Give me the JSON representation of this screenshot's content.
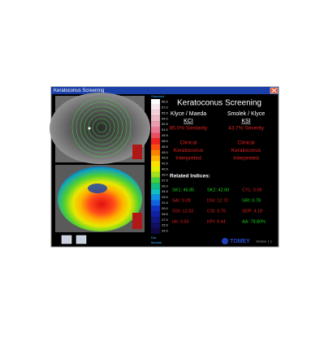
{
  "window": {
    "title": "Keratoconus Screening"
  },
  "scale": {
    "header": "Standard",
    "labels": [
      "58.5",
      "57.0",
      "55.5",
      "54.0",
      "52.5",
      "51.0",
      "49.5",
      "48.0",
      "46.5",
      "45.0",
      "43.5",
      "42.0",
      "40.5",
      "39.0",
      "37.5",
      "36.0",
      "34.5",
      "33.0",
      "31.5",
      "30.0",
      "28.5",
      "27.0",
      "25.5",
      "24.0"
    ],
    "footer": [
      "Dia",
      "Module"
    ]
  },
  "panel": {
    "heading": "Keratoconus Screening",
    "columns": [
      {
        "author": "Klyce / Maeda",
        "index": "KCI",
        "result": "85.0% Similarity",
        "interpretation": [
          "Clinical",
          "Keratoconus",
          "Interpreted"
        ]
      },
      {
        "author": "Smolek / Klyce",
        "index": "KSI",
        "result": "43.7% Severity",
        "interpretation": [
          "Clinical",
          "Keratoconus",
          "Interpreted"
        ]
      }
    ],
    "related_title": "Related Indices:",
    "indices": [
      [
        {
          "text": "SK1: 45.85",
          "color": "#19d219"
        },
        {
          "text": "SK2: 42.60",
          "color": "#19d219"
        },
        {
          "text": "CYL: 3.06",
          "color": "#e02020"
        }
      ],
      [
        {
          "text": "SAI: 0.28",
          "color": "#e02020"
        },
        {
          "text": "DSI: 12.72",
          "color": "#e02020"
        },
        {
          "text": "SRI: 0.78",
          "color": "#19d219"
        }
      ],
      [
        {
          "text": "OSI: 12.62",
          "color": "#e02020"
        },
        {
          "text": "CSI: 0.75",
          "color": "#e02020"
        },
        {
          "text": "SDP: 4.18",
          "color": "#e02020"
        }
      ],
      [
        {
          "text": "IAI: 0.53",
          "color": "#e02020"
        },
        {
          "text": "KPI: 0.44",
          "color": "#e02020"
        },
        {
          "text": "AA: 78.80%",
          "color": "#19d219"
        }
      ]
    ]
  },
  "footer": {
    "logo": "TOMEY",
    "version": "Version 1.1"
  }
}
